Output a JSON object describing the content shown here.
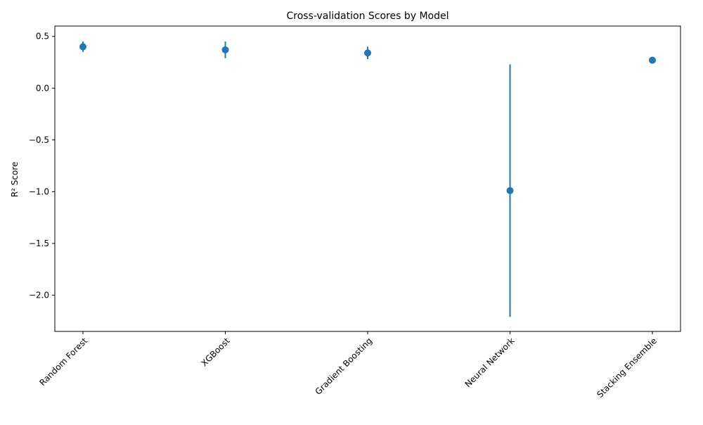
{
  "chart_data": {
    "type": "scatter",
    "title": "Cross-validation Scores by Model",
    "xlabel": "",
    "ylabel": "R² Score",
    "categories": [
      "Random Forest",
      "XGBoost",
      "Gradient Boosting",
      "Neural Network",
      "Stacking Ensemble"
    ],
    "series": [
      {
        "values": [
          0.4,
          0.37,
          0.34,
          -0.99,
          0.27
        ],
        "errors": [
          0.05,
          0.08,
          0.06,
          1.22,
          0.0
        ]
      }
    ],
    "ylim": [
      -2.35,
      0.6
    ],
    "yticks": [
      0.5,
      0.0,
      -0.5,
      -1.0,
      -1.5,
      -2.0
    ],
    "ytick_labels": [
      "0.5",
      "0.0",
      "−0.5",
      "−1.0",
      "−1.5",
      "−2.0"
    ],
    "grid": false,
    "legend": "none",
    "colors": {
      "marker": "#1f77b4",
      "axis": "#000000"
    }
  }
}
